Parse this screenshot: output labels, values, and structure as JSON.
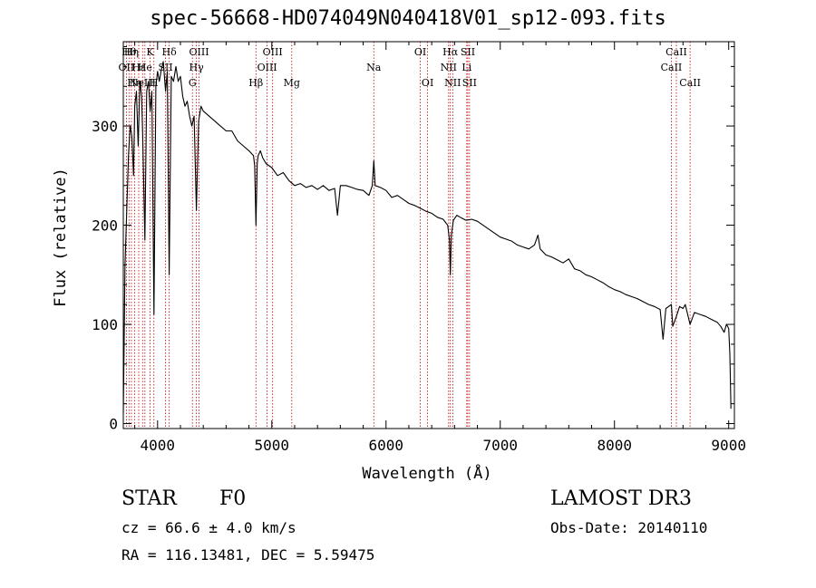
{
  "title": "spec-56668-HD074049N040418V01_sp12-093.fits",
  "info": {
    "object_class": "STAR",
    "subclass": "F0",
    "survey": "LAMOST DR3",
    "cz": "cz = 66.6 ± 4.0 km/s",
    "obs_date": "Obs-Date: 20140110",
    "radec": "RA = 116.13481, DEC =   5.59475"
  },
  "chart_data": {
    "type": "line",
    "title": "spec-56668-HD074049N040418V01_sp12-093.fits",
    "xlabel": "Wavelength (Å)",
    "ylabel": "Flux (relative)",
    "xlim": [
      3700,
      9050
    ],
    "ylim": [
      -5,
      385
    ],
    "xticks": [
      4000,
      5000,
      6000,
      7000,
      8000,
      9000
    ],
    "yticks": [
      0,
      100,
      200,
      300
    ],
    "series": [
      {
        "name": "flux",
        "points": [
          [
            3700,
            10
          ],
          [
            3715,
            160
          ],
          [
            3730,
            215
          ],
          [
            3745,
            270
          ],
          [
            3760,
            300
          ],
          [
            3775,
            290
          ],
          [
            3790,
            250
          ],
          [
            3800,
            320
          ],
          [
            3815,
            335
          ],
          [
            3830,
            280
          ],
          [
            3845,
            345
          ],
          [
            3860,
            330
          ],
          [
            3870,
            290
          ],
          [
            3889,
            185
          ],
          [
            3905,
            335
          ],
          [
            3920,
            345
          ],
          [
            3935,
            315
          ],
          [
            3950,
            335
          ],
          [
            3968,
            110
          ],
          [
            3985,
            340
          ],
          [
            4000,
            355
          ],
          [
            4015,
            345
          ],
          [
            4030,
            355
          ],
          [
            4050,
            365
          ],
          [
            4070,
            335
          ],
          [
            4085,
            355
          ],
          [
            4102,
            150
          ],
          [
            4120,
            350
          ],
          [
            4140,
            345
          ],
          [
            4160,
            360
          ],
          [
            4180,
            345
          ],
          [
            4200,
            350
          ],
          [
            4220,
            330
          ],
          [
            4240,
            320
          ],
          [
            4260,
            325
          ],
          [
            4280,
            310
          ],
          [
            4300,
            300
          ],
          [
            4320,
            310
          ],
          [
            4340,
            215
          ],
          [
            4360,
            305
          ],
          [
            4380,
            320
          ],
          [
            4400,
            315
          ],
          [
            4450,
            310
          ],
          [
            4500,
            305
          ],
          [
            4550,
            300
          ],
          [
            4600,
            295
          ],
          [
            4650,
            295
          ],
          [
            4700,
            285
          ],
          [
            4750,
            280
          ],
          [
            4800,
            275
          ],
          [
            4840,
            270
          ],
          [
            4850,
            260
          ],
          [
            4861,
            200
          ],
          [
            4872,
            262
          ],
          [
            4880,
            270
          ],
          [
            4900,
            275
          ],
          [
            4920,
            268
          ],
          [
            4950,
            262
          ],
          [
            5000,
            258
          ],
          [
            5050,
            250
          ],
          [
            5100,
            253
          ],
          [
            5150,
            245
          ],
          [
            5200,
            240
          ],
          [
            5250,
            242
          ],
          [
            5300,
            238
          ],
          [
            5350,
            240
          ],
          [
            5400,
            236
          ],
          [
            5450,
            240
          ],
          [
            5500,
            235
          ],
          [
            5550,
            237
          ],
          [
            5575,
            210
          ],
          [
            5600,
            240
          ],
          [
            5650,
            240
          ],
          [
            5700,
            238
          ],
          [
            5750,
            236
          ],
          [
            5800,
            235
          ],
          [
            5850,
            230
          ],
          [
            5880,
            240
          ],
          [
            5893,
            265
          ],
          [
            5905,
            240
          ],
          [
            5950,
            238
          ],
          [
            6000,
            235
          ],
          [
            6050,
            228
          ],
          [
            6100,
            230
          ],
          [
            6150,
            226
          ],
          [
            6200,
            222
          ],
          [
            6250,
            220
          ],
          [
            6300,
            217
          ],
          [
            6350,
            214
          ],
          [
            6400,
            212
          ],
          [
            6450,
            208
          ],
          [
            6500,
            206
          ],
          [
            6540,
            200
          ],
          [
            6555,
            185
          ],
          [
            6563,
            150
          ],
          [
            6572,
            190
          ],
          [
            6590,
            205
          ],
          [
            6620,
            210
          ],
          [
            6650,
            208
          ],
          [
            6700,
            205
          ],
          [
            6750,
            206
          ],
          [
            6800,
            204
          ],
          [
            6850,
            200
          ],
          [
            6900,
            196
          ],
          [
            6950,
            192
          ],
          [
            7000,
            188
          ],
          [
            7050,
            186
          ],
          [
            7100,
            184
          ],
          [
            7150,
            180
          ],
          [
            7200,
            178
          ],
          [
            7250,
            176
          ],
          [
            7300,
            180
          ],
          [
            7330,
            190
          ],
          [
            7350,
            176
          ],
          [
            7400,
            170
          ],
          [
            7450,
            168
          ],
          [
            7500,
            165
          ],
          [
            7550,
            162
          ],
          [
            7600,
            166
          ],
          [
            7650,
            156
          ],
          [
            7700,
            154
          ],
          [
            7750,
            150
          ],
          [
            7800,
            148
          ],
          [
            7850,
            145
          ],
          [
            7900,
            142
          ],
          [
            7950,
            138
          ],
          [
            8000,
            135
          ],
          [
            8050,
            133
          ],
          [
            8100,
            130
          ],
          [
            8150,
            128
          ],
          [
            8200,
            126
          ],
          [
            8250,
            123
          ],
          [
            8300,
            120
          ],
          [
            8350,
            118
          ],
          [
            8400,
            115
          ],
          [
            8425,
            85
          ],
          [
            8450,
            116
          ],
          [
            8498,
            120
          ],
          [
            8510,
            98
          ],
          [
            8542,
            108
          ],
          [
            8570,
            118
          ],
          [
            8600,
            116
          ],
          [
            8620,
            120
          ],
          [
            8662,
            100
          ],
          [
            8700,
            112
          ],
          [
            8750,
            110
          ],
          [
            8800,
            108
          ],
          [
            8850,
            105
          ],
          [
            8900,
            102
          ],
          [
            8930,
            98
          ],
          [
            8960,
            92
          ],
          [
            8980,
            100
          ],
          [
            9000,
            96
          ],
          [
            9010,
            70
          ],
          [
            9020,
            15
          ]
        ]
      }
    ],
    "lines": [
      {
        "wl": 3727,
        "label": "OII",
        "row": 1,
        "anchor": "middle"
      },
      {
        "wl": 3750,
        "label": "Hθ",
        "row": 0,
        "anchor": "middle"
      },
      {
        "wl": 3771,
        "label": "Hη",
        "row": 0,
        "anchor": "middle"
      },
      {
        "wl": 3798,
        "label": "Hη",
        "row": 2,
        "anchor": "middle"
      },
      {
        "wl": 3835,
        "label": "Hε",
        "row": 1,
        "anchor": "middle"
      },
      {
        "wl": 3869,
        "label": "NeIII",
        "row": 2,
        "anchor": "middle"
      },
      {
        "wl": 3889,
        "label": "He",
        "row": 1,
        "anchor": "middle"
      },
      {
        "wl": 3934,
        "label": "K",
        "row": 0,
        "anchor": "middle"
      },
      {
        "wl": 3968,
        "label": "H",
        "row": 2,
        "anchor": "middle"
      },
      {
        "wl": 4070,
        "label": "SII",
        "row": 1,
        "anchor": "middle"
      },
      {
        "wl": 4102,
        "label": "Hδ",
        "row": 0,
        "anchor": "middle"
      },
      {
        "wl": 4305,
        "label": "G",
        "row": 2,
        "anchor": "middle"
      },
      {
        "wl": 4340,
        "label": "Hγ",
        "row": 1,
        "anchor": "middle"
      },
      {
        "wl": 4363,
        "label": "OIII",
        "row": 0,
        "anchor": "middle"
      },
      {
        "wl": 4861,
        "label": "Hβ",
        "row": 2,
        "anchor": "middle"
      },
      {
        "wl": 4959,
        "label": "OIII",
        "row": 1,
        "anchor": "middle"
      },
      {
        "wl": 5007,
        "label": "OIII",
        "row": 0,
        "anchor": "middle"
      },
      {
        "wl": 5175,
        "label": "Mg",
        "row": 2,
        "anchor": "middle"
      },
      {
        "wl": 5893,
        "label": "Na",
        "row": 1,
        "anchor": "middle"
      },
      {
        "wl": 6300,
        "label": "OI",
        "row": 0,
        "anchor": "middle"
      },
      {
        "wl": 6364,
        "label": "OI",
        "row": 2,
        "anchor": "middle"
      },
      {
        "wl": 6548,
        "label": "NII",
        "row": 1,
        "anchor": "middle"
      },
      {
        "wl": 6563,
        "label": "Hα",
        "row": 0,
        "anchor": "middle"
      },
      {
        "wl": 6584,
        "label": "NII",
        "row": 2,
        "anchor": "middle"
      },
      {
        "wl": 6707,
        "label": "Li",
        "row": 1,
        "anchor": "middle"
      },
      {
        "wl": 6716,
        "label": "SII",
        "row": 0,
        "anchor": "middle"
      },
      {
        "wl": 6731,
        "label": "SII",
        "row": 2,
        "anchor": "middle"
      },
      {
        "wl": 8498,
        "label": "CaII",
        "row": 1,
        "anchor": "middle"
      },
      {
        "wl": 8542,
        "label": "CaII",
        "row": 0,
        "anchor": "middle"
      },
      {
        "wl": 8662,
        "label": "CaII",
        "row": 2,
        "anchor": "middle"
      }
    ],
    "colors": {
      "spectrum": "#000000",
      "line_marker": "#c00000",
      "axis": "#000000"
    }
  }
}
